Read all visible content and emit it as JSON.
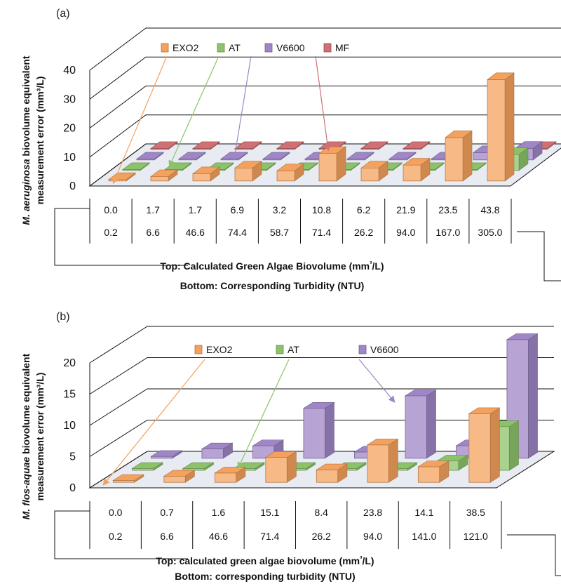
{
  "colors": {
    "EXO2": "#f4a15d",
    "AT": "#8cc36a",
    "V6600": "#9f86c6",
    "MF": "#d07074",
    "grid": "#111111",
    "floor": "#e8ecf2"
  },
  "chart_data": [
    {
      "panel": "(a)",
      "type": "bar",
      "ylabel": "M. aeruginosa biovolume equivalent measurement error (mm³/L)",
      "ylim": [
        0,
        40
      ],
      "yticks": [
        0,
        10,
        20,
        30,
        40
      ],
      "categories_top": [
        "0.0",
        "1.7",
        "1.7",
        "6.9",
        "3.2",
        "10.8",
        "6.2",
        "21.9",
        "23.5",
        "43.8"
      ],
      "categories_bottom": [
        "0.2",
        "6.6",
        "46.6",
        "74.4",
        "58.7",
        "71.4",
        "26.2",
        "94.0",
        "167.0",
        "305.0"
      ],
      "caption_top": "Top: Calculated Green Algae Biovolume (mm³/L)",
      "caption_bottom": "Bottom: Corresponding Turbidity (NTU)",
      "series": [
        {
          "name": "EXO2",
          "values": [
            0.5,
            1.5,
            2.5,
            4.5,
            3.5,
            9.5,
            4.5,
            5.5,
            15,
            35
          ]
        },
        {
          "name": "AT",
          "values": [
            0.3,
            0.3,
            0.3,
            0.3,
            0.3,
            0.3,
            0.3,
            0.3,
            0.3,
            5.5
          ]
        },
        {
          "name": "V6600",
          "values": [
            0.3,
            0.3,
            0.3,
            0.3,
            0.3,
            0.3,
            0.3,
            0.3,
            2.5,
            4
          ]
        },
        {
          "name": "MF",
          "values": [
            0.3,
            0.3,
            0.3,
            0.3,
            0.3,
            0.3,
            0.3,
            0.3,
            0.3,
            0.3
          ]
        }
      ]
    },
    {
      "panel": "(b)",
      "type": "bar",
      "ylabel": "M. flos-aquae biovolume equivalent measurement error (mm³/L)",
      "ylim": [
        0,
        20
      ],
      "yticks": [
        0,
        5,
        10,
        15,
        20
      ],
      "categories_top": [
        "0.0",
        "0.7",
        "1.6",
        "15.1",
        "8.4",
        "23.8",
        "14.1",
        "38.5"
      ],
      "categories_bottom": [
        "0.2",
        "6.6",
        "46.6",
        "71.4",
        "26.2",
        "94.0",
        "141.0",
        "121.0"
      ],
      "caption_top": "Top: calculated green algae biovolume (mm³/L)",
      "caption_bottom": "Bottom: corresponding turbidity (NTU)",
      "series": [
        {
          "name": "EXO2",
          "values": [
            0.3,
            1,
            1.5,
            4,
            2,
            6,
            2.5,
            11
          ]
        },
        {
          "name": "AT",
          "values": [
            0.3,
            0.3,
            0.3,
            0.3,
            0.3,
            0.3,
            1.5,
            7
          ]
        },
        {
          "name": "V6600",
          "values": [
            0.3,
            1.5,
            2,
            8,
            1,
            10,
            2,
            19
          ]
        }
      ]
    }
  ]
}
